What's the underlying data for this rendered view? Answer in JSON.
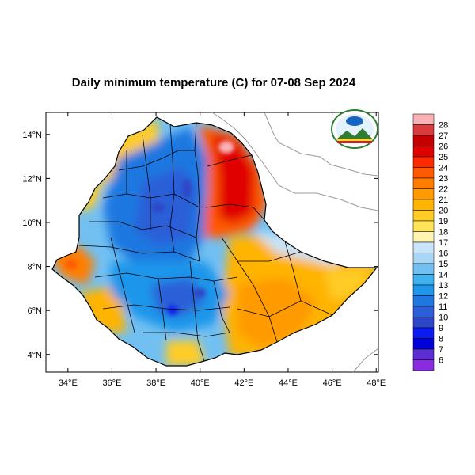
{
  "title": "Daily minimum temperature (C) for 07-08 Sep 2024",
  "map": {
    "lon_range": [
      33,
      48.1
    ],
    "lat_range": [
      3.2,
      15.0
    ],
    "x_ticks": [
      {
        "value": 34,
        "label": "34°E"
      },
      {
        "value": 36,
        "label": "36°E"
      },
      {
        "value": 38,
        "label": "38°E"
      },
      {
        "value": 40,
        "label": "40°E"
      },
      {
        "value": 42,
        "label": "42°E"
      },
      {
        "value": 44,
        "label": "44°E"
      },
      {
        "value": 46,
        "label": "46°E"
      },
      {
        "value": 48,
        "label": "48°E"
      }
    ],
    "y_ticks": [
      {
        "value": 14,
        "label": "14°N"
      },
      {
        "value": 12,
        "label": "12°N"
      },
      {
        "value": 10,
        "label": "10°N"
      },
      {
        "value": 8,
        "label": "8°N"
      },
      {
        "value": 6,
        "label": "6°N"
      },
      {
        "value": 4,
        "label": "4°N"
      }
    ]
  },
  "colorbar": {
    "levels": [
      {
        "label": "28",
        "color": "#f9b3b6"
      },
      {
        "label": "27",
        "color": "#d83c3c"
      },
      {
        "label": "26",
        "color": "#c40000"
      },
      {
        "label": "25",
        "color": "#e00000"
      },
      {
        "label": "24",
        "color": "#ff2a00"
      },
      {
        "label": "23",
        "color": "#ff5a00"
      },
      {
        "label": "22",
        "color": "#ff7e00"
      },
      {
        "label": "21",
        "color": "#ff9a00"
      },
      {
        "label": "20",
        "color": "#ffb400"
      },
      {
        "label": "19",
        "color": "#ffcc26"
      },
      {
        "label": "18",
        "color": "#ffe45a"
      },
      {
        "label": "17",
        "color": "#fff5b0"
      },
      {
        "label": "16",
        "color": "#c8e4f8"
      },
      {
        "label": "15",
        "color": "#a8d6f5"
      },
      {
        "label": "14",
        "color": "#72c0f2"
      },
      {
        "label": "13",
        "color": "#3fb2f0"
      },
      {
        "label": "12",
        "color": "#1f96ea"
      },
      {
        "label": "11",
        "color": "#1f78e0"
      },
      {
        "label": "10",
        "color": "#2b5ed8"
      },
      {
        "label": "9",
        "color": "#2d46c8"
      },
      {
        "label": "8",
        "color": "#0a1cf0"
      },
      {
        "label": "7",
        "color": "#0000d8"
      },
      {
        "label": "6",
        "color": "#5a2ed0"
      },
      {
        "label": "",
        "color": "#8a2be2"
      }
    ]
  },
  "logo": {
    "colors": [
      "#2e7d32",
      "#1565c0",
      "#fdd835",
      "#c62828"
    ],
    "icon": "ethiopian-meteorology-institute-logo"
  }
}
